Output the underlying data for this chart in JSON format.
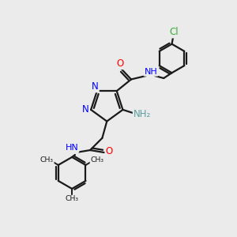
{
  "bg_color": "#ebebeb",
  "line_color": "#1a1a1a",
  "bond_width": 1.6,
  "font_size_atom": 8.5,
  "fig_size": [
    3.0,
    3.0
  ],
  "dpi": 100,
  "xlim": [
    0,
    10
  ],
  "ylim": [
    0,
    10
  ]
}
